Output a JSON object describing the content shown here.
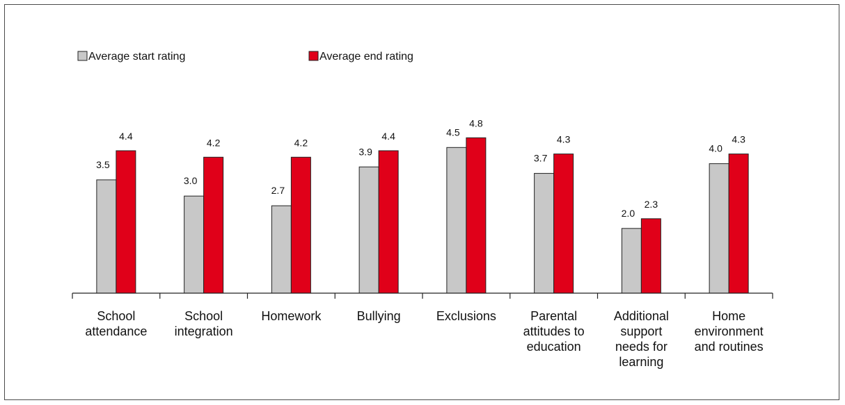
{
  "chart_data": {
    "type": "bar",
    "categories": [
      [
        "School",
        "attendance"
      ],
      [
        "School",
        "integration"
      ],
      [
        "Homework"
      ],
      [
        "Bullying"
      ],
      [
        "Exclusions"
      ],
      [
        "Parental",
        "attitudes to",
        "education"
      ],
      [
        "Additional",
        "support",
        "needs for",
        "learning"
      ],
      [
        "Home",
        "environment",
        "and routines"
      ]
    ],
    "series": [
      {
        "name": "Average start rating",
        "color": "#c8c8c8",
        "values": [
          3.5,
          3.0,
          2.7,
          3.9,
          4.5,
          3.7,
          2.0,
          4.0
        ],
        "labels": [
          "3.5",
          "3.0",
          "2.7",
          "3.9",
          "4.5",
          "3.7",
          "2.0",
          "4.0"
        ]
      },
      {
        "name": "Average end rating",
        "color": "#e00019",
        "values": [
          4.4,
          4.2,
          4.2,
          4.4,
          4.8,
          4.3,
          2.3,
          4.3
        ],
        "labels": [
          "4.4",
          "4.2",
          "4.2",
          "4.4",
          "4.8",
          "4.3",
          "2.3",
          "4.3"
        ]
      }
    ],
    "ylim": [
      0,
      5
    ],
    "legend": "top-left",
    "grid": false,
    "xlabel": "",
    "ylabel": ""
  }
}
